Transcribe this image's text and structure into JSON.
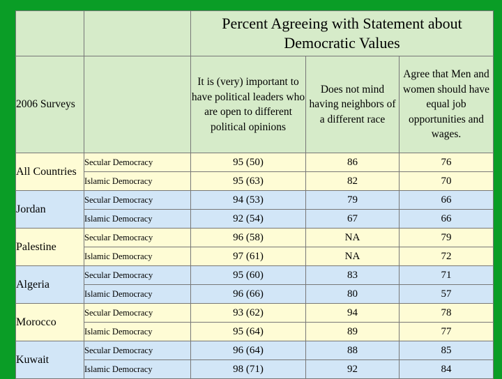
{
  "title": "Percent Agreeing with Statement about Democratic Values",
  "corner_label": "2006 Surveys",
  "columns": [
    "It is (very) important to have political leaders who are open to different political opinions",
    "Does not mind having neighbors of a different race",
    "Agree that Men and women should have equal job opportunities and wages."
  ],
  "rows": [
    {
      "country": "All Countries",
      "secular": {
        "label": "Secular Democracy",
        "values": [
          "95 (50)",
          "86",
          "76"
        ]
      },
      "islamic": {
        "label": "Islamic Democracy",
        "values": [
          "95 (63)",
          "82",
          "70"
        ]
      }
    },
    {
      "country": "Jordan",
      "secular": {
        "label": "Secular Democracy",
        "values": [
          "94 (53)",
          "79",
          "66"
        ]
      },
      "islamic": {
        "label": "Islamic Democracy",
        "values": [
          "92 (54)",
          "67",
          "66"
        ]
      }
    },
    {
      "country": "Palestine",
      "secular": {
        "label": "Secular Democracy",
        "values": [
          "96 (58)",
          "NA",
          "79"
        ]
      },
      "islamic": {
        "label": "Islamic Democracy",
        "values": [
          "97 (61)",
          "NA",
          "72"
        ]
      }
    },
    {
      "country": "Algeria",
      "secular": {
        "label": "Secular Democracy",
        "values": [
          "95 (60)",
          "83",
          "71"
        ]
      },
      "islamic": {
        "label": "Islamic Democracy",
        "values": [
          "96 (66)",
          "80",
          "57"
        ]
      }
    },
    {
      "country": "Morocco",
      "secular": {
        "label": "Secular Democracy",
        "values": [
          "93 (62)",
          "94",
          "78"
        ]
      },
      "islamic": {
        "label": "Islamic Democracy",
        "values": [
          "95 (64)",
          "89",
          "77"
        ]
      }
    },
    {
      "country": "Kuwait",
      "secular": {
        "label": "Secular Democracy",
        "values": [
          "96 (64)",
          "88",
          "85"
        ]
      },
      "islamic": {
        "label": "Islamic Democracy",
        "values": [
          "98 (71)",
          "92",
          "84"
        ]
      }
    }
  ],
  "colors": {
    "background": "#0a9d26",
    "header": "#d6ebc9",
    "cream": "#fefcd5",
    "blue": "#d2e6f7"
  }
}
